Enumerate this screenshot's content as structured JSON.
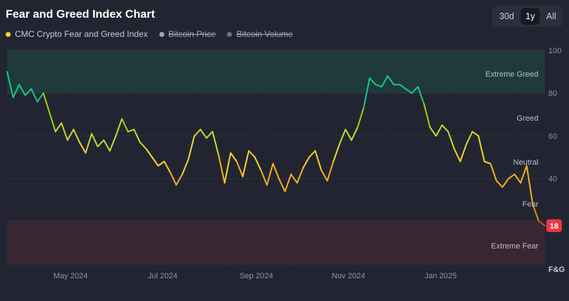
{
  "header": {
    "title": "Fear and Greed Index Chart",
    "range_tabs": [
      "30d",
      "1y",
      "All"
    ],
    "active_range": "1y"
  },
  "legend": [
    {
      "label": "CMC Crypto Fear and Greed Index",
      "color": "#f3d42f",
      "visible": true
    },
    {
      "label": "Bitcoin Price",
      "color": "#a1a7bb",
      "visible": false
    },
    {
      "label": "Bitcoin Volume",
      "color": "#6b7185",
      "visible": false
    }
  ],
  "chart_data": {
    "type": "line",
    "ylim": [
      0,
      100
    ],
    "y_ticks": [
      "100",
      "80",
      "60",
      "40"
    ],
    "y_axis_label": "F&G",
    "x_tick_labels": [
      "May 2024",
      "Jul 2024",
      "Sep 2024",
      "Nov 2024",
      "Jan 2025"
    ],
    "zones": [
      {
        "label": "Extreme Greed",
        "from": 80,
        "to": 100,
        "color": "#16c784"
      },
      {
        "label": "Greed",
        "from": 60,
        "to": 80
      },
      {
        "label": "Neutral",
        "from": 40,
        "to": 60
      },
      {
        "label": "Fear",
        "from": 20,
        "to": 40
      },
      {
        "label": "Extreme Fear",
        "from": 0,
        "to": 20,
        "color": "#ea3943"
      }
    ],
    "current_value": "18",
    "series": [
      {
        "name": "CMC Crypto Fear and Greed Index",
        "x": [
          "2024-03-20",
          "2024-03-24",
          "2024-03-28",
          "2024-04-01",
          "2024-04-05",
          "2024-04-09",
          "2024-04-13",
          "2024-04-17",
          "2024-04-21",
          "2024-04-25",
          "2024-04-29",
          "2024-05-03",
          "2024-05-07",
          "2024-05-11",
          "2024-05-15",
          "2024-05-19",
          "2024-05-23",
          "2024-05-27",
          "2024-05-31",
          "2024-06-04",
          "2024-06-08",
          "2024-06-12",
          "2024-06-16",
          "2024-06-20",
          "2024-06-24",
          "2024-06-28",
          "2024-07-02",
          "2024-07-06",
          "2024-07-10",
          "2024-07-14",
          "2024-07-18",
          "2024-07-22",
          "2024-07-26",
          "2024-07-30",
          "2024-08-03",
          "2024-08-07",
          "2024-08-11",
          "2024-08-15",
          "2024-08-19",
          "2024-08-23",
          "2024-08-27",
          "2024-08-31",
          "2024-09-04",
          "2024-09-08",
          "2024-09-12",
          "2024-09-16",
          "2024-09-20",
          "2024-09-24",
          "2024-09-28",
          "2024-10-02",
          "2024-10-06",
          "2024-10-10",
          "2024-10-14",
          "2024-10-18",
          "2024-10-22",
          "2024-10-26",
          "2024-10-30",
          "2024-11-03",
          "2024-11-07",
          "2024-11-11",
          "2024-11-15",
          "2024-11-19",
          "2024-11-23",
          "2024-11-27",
          "2024-12-01",
          "2024-12-05",
          "2024-12-09",
          "2024-12-13",
          "2024-12-17",
          "2024-12-21",
          "2024-12-25",
          "2024-12-29",
          "2025-01-02",
          "2025-01-06",
          "2025-01-10",
          "2025-01-14",
          "2025-01-18",
          "2025-01-22",
          "2025-01-26",
          "2025-01-30",
          "2025-02-03",
          "2025-02-07",
          "2025-02-11",
          "2025-02-15",
          "2025-02-19",
          "2025-02-23",
          "2025-02-27",
          "2025-03-03",
          "2025-03-07",
          "2025-03-11"
        ],
        "values": [
          90,
          78,
          84,
          79,
          82,
          76,
          80,
          71,
          62,
          66,
          58,
          63,
          57,
          52,
          61,
          55,
          58,
          53,
          60,
          68,
          62,
          63,
          57,
          54,
          50,
          46,
          48,
          43,
          37,
          42,
          49,
          60,
          63,
          59,
          62,
          51,
          38,
          52,
          48,
          41,
          53,
          50,
          44,
          37,
          47,
          40,
          34,
          42,
          38,
          45,
          50,
          53,
          44,
          39,
          48,
          56,
          63,
          58,
          64,
          73,
          87,
          84,
          83,
          88,
          84,
          84,
          82,
          80,
          83,
          75,
          64,
          60,
          65,
          62,
          54,
          48,
          56,
          62,
          60,
          48,
          47,
          39,
          36,
          40,
          42,
          38,
          46,
          28,
          20,
          18
        ]
      }
    ]
  }
}
